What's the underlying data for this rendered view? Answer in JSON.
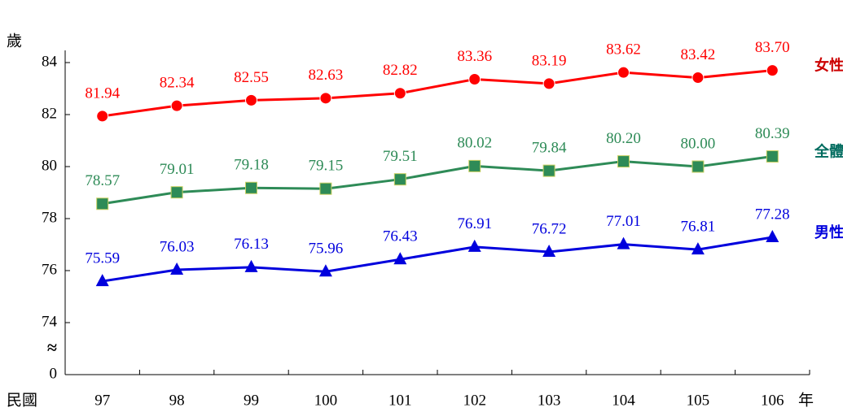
{
  "chart_data": {
    "type": "line",
    "y_unit": "歲",
    "x_prefix": "民國",
    "x_suffix": "年",
    "categories": [
      "97",
      "98",
      "99",
      "100",
      "101",
      "102",
      "103",
      "104",
      "105",
      "106"
    ],
    "series": [
      {
        "name": "女性",
        "color": "#ff0000",
        "label_color": "#cc0000",
        "marker": "circle",
        "values": [
          81.94,
          82.34,
          82.55,
          82.63,
          82.82,
          83.36,
          83.19,
          83.62,
          83.42,
          83.7
        ],
        "value_labels": [
          "81.94",
          "82.34",
          "82.55",
          "82.63",
          "82.82",
          "83.36",
          "83.19",
          "83.62",
          "83.42",
          "83.70"
        ]
      },
      {
        "name": "全體",
        "color": "#2e8b57",
        "label_color": "#006b5e",
        "marker": "square",
        "values": [
          78.57,
          79.01,
          79.18,
          79.15,
          79.51,
          80.02,
          79.84,
          80.2,
          80.0,
          80.39
        ],
        "value_labels": [
          "78.57",
          "79.01",
          "79.18",
          "79.15",
          "79.51",
          "80.02",
          "79.84",
          "80.20",
          "80.00",
          "80.39"
        ]
      },
      {
        "name": "男性",
        "color": "#0000dd",
        "label_color": "#0000dd",
        "marker": "triangle",
        "values": [
          75.59,
          76.03,
          76.13,
          75.96,
          76.43,
          76.91,
          76.72,
          77.01,
          76.81,
          77.28
        ]
      }
    ],
    "ylim": [
      72,
      84
    ],
    "yticks": [
      74,
      76,
      78,
      80,
      82,
      84
    ],
    "y_origin_label": "0",
    "axis_break_symbol": "≈"
  }
}
